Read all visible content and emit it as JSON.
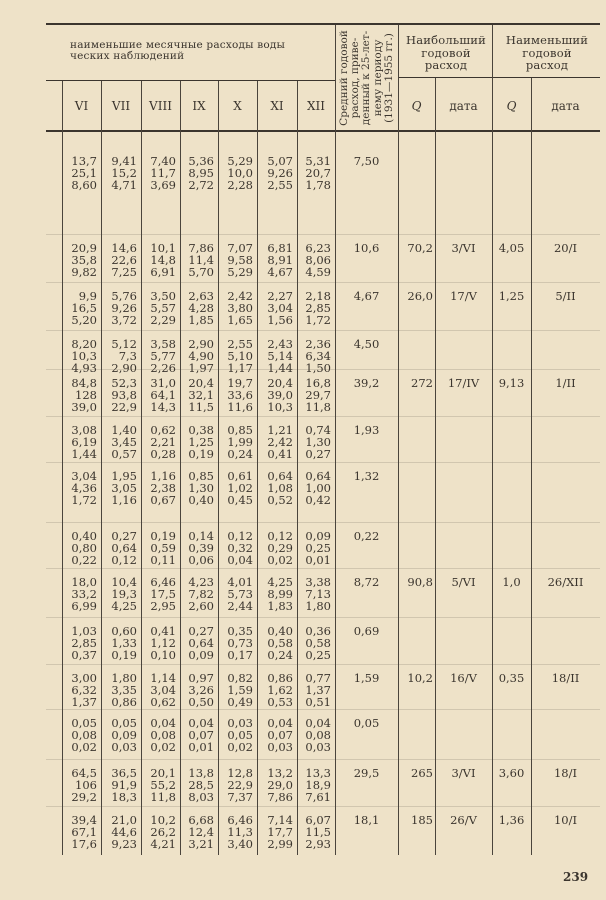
{
  "header": {
    "group_title_line1": "наименьшие месячные расходы воды",
    "group_title_line2": "ческих наблюдений",
    "months": [
      "VI",
      "VII",
      "VIII",
      "IX",
      "X",
      "XI",
      "XII"
    ],
    "mean_title": [
      "Средний годовой",
      "расход, приве-",
      "денный к 25-лет-",
      "нему периоду",
      "(1931—1955 гг.)"
    ],
    "max_title": [
      "Наибольший",
      "годовой",
      "расход"
    ],
    "min_title": [
      "Наименьший",
      "годовой",
      "расход"
    ],
    "q_label": "Q",
    "date_label": "дата"
  },
  "rows": [
    {
      "months": [
        [
          "13,7",
          "25,1",
          "8,60"
        ],
        [
          "9,41",
          "15,2",
          "4,71"
        ],
        [
          "7,40",
          "11,7",
          "3,69"
        ],
        [
          "5,36",
          "8,95",
          "2,72"
        ],
        [
          "5,29",
          "10,0",
          "2,28"
        ],
        [
          "5,07",
          "9,26",
          "2,55"
        ],
        [
          "5,31",
          "20,7",
          "1,78"
        ]
      ],
      "mean": "7,50",
      "max_q": "",
      "max_date": "",
      "min_q": "",
      "min_date": ""
    },
    {
      "months": [
        [
          "20,9",
          "35,8",
          "9,82"
        ],
        [
          "14,6",
          "22,6",
          "7,25"
        ],
        [
          "10,1",
          "14,8",
          "6,91"
        ],
        [
          "7,86",
          "11,4",
          "5,70"
        ],
        [
          "7,07",
          "9,58",
          "5,29"
        ],
        [
          "6,81",
          "8,91",
          "4,67"
        ],
        [
          "6,23",
          "8,06",
          "4,59"
        ]
      ],
      "mean": "10,6",
      "max_q": "70,2",
      "max_date": "3/VI",
      "min_q": "4,05",
      "min_date": "20/I"
    },
    {
      "months": [
        [
          "9,9",
          "16,5",
          "5,20"
        ],
        [
          "5,76",
          "9,26",
          "3,72"
        ],
        [
          "3,50",
          "5,57",
          "2,29"
        ],
        [
          "2,63",
          "4,28",
          "1,85"
        ],
        [
          "2,42",
          "3,80",
          "1,65"
        ],
        [
          "2,27",
          "3,04",
          "1,56"
        ],
        [
          "2,18",
          "2,85",
          "1,72"
        ]
      ],
      "mean": "4,67",
      "max_q": "26,0",
      "max_date": "17/V",
      "min_q": "1,25",
      "min_date": "5/II"
    },
    {
      "months": [
        [
          "8,20",
          "10,3",
          "4,93"
        ],
        [
          "5,12",
          "7,3",
          "2,90"
        ],
        [
          "3,58",
          "5,77",
          "2,26"
        ],
        [
          "2,90",
          "4,90",
          "1,97"
        ],
        [
          "2,55",
          "5,10",
          "1,17"
        ],
        [
          "2,43",
          "5,14",
          "1,44"
        ],
        [
          "2,36",
          "6,34",
          "1,50"
        ]
      ],
      "mean": "4,50",
      "max_q": "",
      "max_date": "",
      "min_q": "",
      "min_date": ""
    },
    {
      "months": [
        [
          "84,8",
          "128",
          "39,0"
        ],
        [
          "52,3",
          "93,8",
          "22,9"
        ],
        [
          "31,0",
          "64,1",
          "14,3"
        ],
        [
          "20,4",
          "32,1",
          "11,5"
        ],
        [
          "19,7",
          "33,6",
          "11,6"
        ],
        [
          "20,4",
          "39,0",
          "10,3"
        ],
        [
          "16,8",
          "29,7",
          "11,8"
        ]
      ],
      "mean": "39,2",
      "max_q": "272",
      "max_date": "17/IV",
      "min_q": "9,13",
      "min_date": "1/II"
    },
    {
      "months": [
        [
          "3,08",
          "6,19",
          "1,44"
        ],
        [
          "1,40",
          "3,45",
          "0,57"
        ],
        [
          "0,62",
          "2,21",
          "0,28"
        ],
        [
          "0,38",
          "1,25",
          "0,19"
        ],
        [
          "0,85",
          "1,99",
          "0,24"
        ],
        [
          "1,21",
          "2,42",
          "0,41"
        ],
        [
          "0,74",
          "1,30",
          "0,27"
        ]
      ],
      "mean": "1,93",
      "max_q": "",
      "max_date": "",
      "min_q": "",
      "min_date": ""
    },
    {
      "months": [
        [
          "3,04",
          "4,36",
          "1,72"
        ],
        [
          "1,95",
          "3,05",
          "1,16"
        ],
        [
          "1,16",
          "2,38",
          "0,67"
        ],
        [
          "0,85",
          "1,30",
          "0,40"
        ],
        [
          "0,61",
          "1,02",
          "0,45"
        ],
        [
          "0,64",
          "1,08",
          "0,52"
        ],
        [
          "0,64",
          "1,00",
          "0,42"
        ]
      ],
      "mean": "1,32",
      "max_q": "",
      "max_date": "",
      "min_q": "",
      "min_date": ""
    },
    {
      "months": [
        [
          "0,40",
          "0,80",
          "0,22"
        ],
        [
          "0,27",
          "0,64",
          "0,12"
        ],
        [
          "0,19",
          "0,59",
          "0,11"
        ],
        [
          "0,14",
          "0,39",
          "0,06"
        ],
        [
          "0,12",
          "0,32",
          "0,04"
        ],
        [
          "0,12",
          "0,29",
          "0,02"
        ],
        [
          "0,09",
          "0,25",
          "0,01"
        ]
      ],
      "mean": "0,22",
      "max_q": "",
      "max_date": "",
      "min_q": "",
      "min_date": ""
    },
    {
      "months": [
        [
          "18,0",
          "33,2",
          "6,99"
        ],
        [
          "10,4",
          "19,3",
          "4,25"
        ],
        [
          "6,46",
          "17,5",
          "2,95"
        ],
        [
          "4,23",
          "7,82",
          "2,60"
        ],
        [
          "4,01",
          "5,73",
          "2,44"
        ],
        [
          "4,25",
          "8,99",
          "1,83"
        ],
        [
          "3,38",
          "7,13",
          "1,80"
        ]
      ],
      "mean": "8,72",
      "max_q": "90,8",
      "max_date": "5/VI",
      "min_q": "1,0",
      "min_date": "26/XII"
    },
    {
      "months": [
        [
          "1,03",
          "2,85",
          "0,37"
        ],
        [
          "0,60",
          "1,33",
          "0,19"
        ],
        [
          "0,41",
          "1,12",
          "0,10"
        ],
        [
          "0,27",
          "0,64",
          "0,09"
        ],
        [
          "0,35",
          "0,73",
          "0,17"
        ],
        [
          "0,40",
          "0,58",
          "0,24"
        ],
        [
          "0,36",
          "0,58",
          "0,25"
        ]
      ],
      "mean": "0,69",
      "max_q": "",
      "max_date": "",
      "min_q": "",
      "min_date": ""
    },
    {
      "months": [
        [
          "3,00",
          "6,32",
          "1,37"
        ],
        [
          "1,80",
          "3,35",
          "0,86"
        ],
        [
          "1,14",
          "3,04",
          "0,62"
        ],
        [
          "0,97",
          "3,26",
          "0,50"
        ],
        [
          "0,82",
          "1,59",
          "0,49"
        ],
        [
          "0,86",
          "1,62",
          "0,53"
        ],
        [
          "0,77",
          "1,37",
          "0,51"
        ]
      ],
      "mean": "1,59",
      "max_q": "10,2",
      "max_date": "16/V",
      "min_q": "0,35",
      "min_date": "18/II"
    },
    {
      "months": [
        [
          "0,05",
          "0,08",
          "0,02"
        ],
        [
          "0,05",
          "0,09",
          "0,03"
        ],
        [
          "0,04",
          "0,08",
          "0,02"
        ],
        [
          "0,04",
          "0,07",
          "0,01"
        ],
        [
          "0,03",
          "0,05",
          "0,02"
        ],
        [
          "0,04",
          "0,07",
          "0,03"
        ],
        [
          "0,04",
          "0,08",
          "0,03"
        ]
      ],
      "mean": "0,05",
      "max_q": "",
      "max_date": "",
      "min_q": "",
      "min_date": ""
    },
    {
      "months": [
        [
          "64,5",
          "106",
          "29,2"
        ],
        [
          "36,5",
          "91,9",
          "18,3"
        ],
        [
          "20,1",
          "55,2",
          "11,8"
        ],
        [
          "13,8",
          "28,5",
          "8,03"
        ],
        [
          "12,8",
          "22,9",
          "7,37"
        ],
        [
          "13,2",
          "29,0",
          "7,86"
        ],
        [
          "13,3",
          "18,9",
          "7,61"
        ]
      ],
      "mean": "29,5",
      "max_q": "265",
      "max_date": "3/VI",
      "min_q": "3,60",
      "min_date": "18/I"
    },
    {
      "months": [
        [
          "39,4",
          "67,1",
          "17,6"
        ],
        [
          "21,0",
          "44,6",
          "9,23"
        ],
        [
          "10,2",
          "26,2",
          "4,21"
        ],
        [
          "6,68",
          "12,4",
          "3,21"
        ],
        [
          "6,46",
          "11,3",
          "3,40"
        ],
        [
          "7,14",
          "17,7",
          "2,99"
        ],
        [
          "6,07",
          "11,5",
          "2,93"
        ]
      ],
      "mean": "18,1",
      "max_q": "185",
      "max_date": "26/V",
      "min_q": "1,36",
      "min_date": "10/I"
    }
  ],
  "page_number": "239"
}
